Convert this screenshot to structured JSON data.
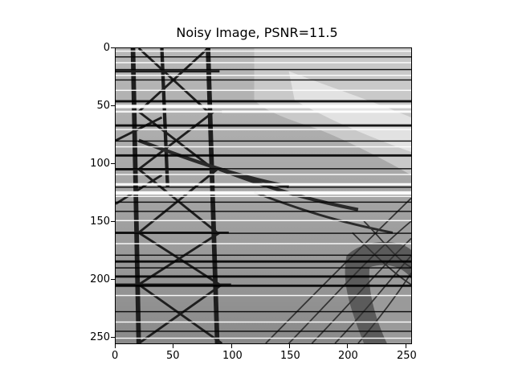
{
  "title": "Noisy Image, PSNR=11.5",
  "x_ticks": [
    "0",
    "50",
    "100",
    "150",
    "200",
    "250"
  ],
  "y_ticks": [
    "0",
    "50",
    "100",
    "150",
    "200",
    "250"
  ],
  "image": {
    "width": 256,
    "height": 256,
    "content": "grayscale photo of a transmission tower and power lines with horizontal line noise"
  }
}
